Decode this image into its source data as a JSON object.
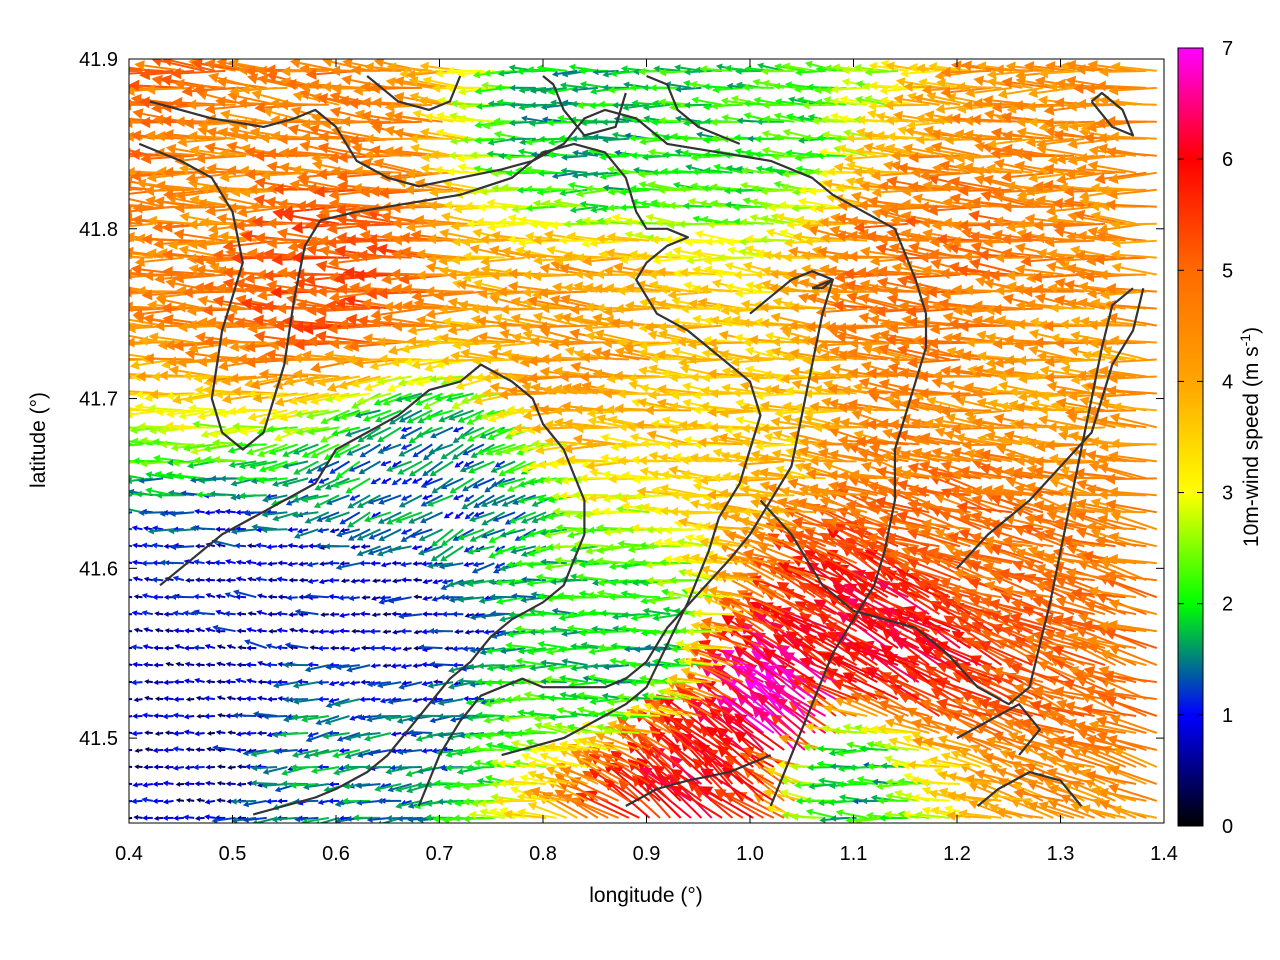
{
  "chart_data": {
    "type": "quiver",
    "title": "",
    "xlabel": "longitude (°)",
    "ylabel": "latitude (°)",
    "xlim": [
      0.4,
      1.4
    ],
    "ylim": [
      41.45,
      41.9
    ],
    "xticks": [
      "0.4",
      "0.5",
      "0.6",
      "0.7",
      "0.8",
      "0.9",
      "1.0",
      "1.1",
      "1.2",
      "1.3",
      "1.4"
    ],
    "yticks": [
      "41.5",
      "41.6",
      "41.7",
      "41.8",
      "41.9"
    ],
    "colorbar": {
      "label_main": "10m-wind speed (m s",
      "label_sup": "-1",
      "label_close": ")",
      "range": [
        0,
        7
      ],
      "ticks": [
        "0",
        "1",
        "2",
        "3",
        "4",
        "5",
        "6",
        "7"
      ],
      "stops": [
        {
          "value": 0,
          "color": "#000000"
        },
        {
          "value": 1,
          "color": "#0000ff"
        },
        {
          "value": 2,
          "color": "#00ff00"
        },
        {
          "value": 3,
          "color": "#ffff00"
        },
        {
          "value": 4,
          "color": "#ffa500"
        },
        {
          "value": 5,
          "color": "#ff6a00"
        },
        {
          "value": 6,
          "color": "#ff0000"
        },
        {
          "value": 7,
          "color": "#ff00ff"
        }
      ]
    },
    "wind_field": {
      "grid_spacing_deg": [
        0.01,
        0.01
      ],
      "background_direction": "westward (from east)",
      "regions": [
        {
          "lon": 0.62,
          "lat": 41.78,
          "speed": 5.2,
          "dir_deg": 178
        },
        {
          "lon": 0.45,
          "lat": 41.87,
          "speed": 4.8,
          "dir_deg": 175
        },
        {
          "lon": 0.5,
          "lat": 41.82,
          "speed": 4.5,
          "dir_deg": 178
        },
        {
          "lon": 0.85,
          "lat": 41.74,
          "speed": 4.2,
          "dir_deg": 175
        },
        {
          "lon": 1.0,
          "lat": 41.7,
          "speed": 3.6,
          "dir_deg": 175
        },
        {
          "lon": 1.2,
          "lat": 41.77,
          "speed": 4.8,
          "dir_deg": 175
        },
        {
          "lon": 1.3,
          "lat": 41.7,
          "speed": 4.2,
          "dir_deg": 176
        },
        {
          "lon": 1.25,
          "lat": 41.63,
          "speed": 4.8,
          "dir_deg": 165
        },
        {
          "lon": 1.05,
          "lat": 41.51,
          "speed": 6.8,
          "dir_deg": 140
        },
        {
          "lon": 1.15,
          "lat": 41.55,
          "speed": 6.0,
          "dir_deg": 150
        },
        {
          "lon": 0.98,
          "lat": 41.47,
          "speed": 6.0,
          "dir_deg": 140
        },
        {
          "lon": 0.6,
          "lat": 41.87,
          "speed": 4.6,
          "dir_deg": 175
        },
        {
          "lon": 1.38,
          "lat": 41.88,
          "speed": 4.4,
          "dir_deg": 180
        },
        {
          "lon": 0.85,
          "lat": 41.86,
          "speed": 1.8,
          "dir_deg": 180
        },
        {
          "lon": 1.0,
          "lat": 41.86,
          "speed": 2.0,
          "dir_deg": 175
        },
        {
          "lon": 0.5,
          "lat": 41.55,
          "speed": 0.8,
          "dir_deg": 170
        },
        {
          "lon": 0.45,
          "lat": 41.5,
          "speed": 0.7,
          "dir_deg": 180
        },
        {
          "lon": 0.65,
          "lat": 41.57,
          "speed": 0.8,
          "dir_deg": 185
        },
        {
          "lon": 0.7,
          "lat": 41.65,
          "speed": 1.4,
          "dir_deg": 210
        },
        {
          "lon": 0.6,
          "lat": 41.5,
          "speed": 1.4,
          "dir_deg": 190
        },
        {
          "lon": 0.9,
          "lat": 41.55,
          "speed": 1.8,
          "dir_deg": 180
        },
        {
          "lon": 1.1,
          "lat": 41.48,
          "speed": 1.6,
          "dir_deg": 180
        }
      ]
    },
    "contours": [
      [
        [
          0.42,
          41.875
        ],
        [
          0.48,
          41.865
        ],
        [
          0.53,
          41.86
        ],
        [
          0.56,
          41.865
        ],
        [
          0.58,
          41.87
        ],
        [
          0.6,
          41.86
        ],
        [
          0.62,
          41.84
        ],
        [
          0.65,
          41.83
        ],
        [
          0.68,
          41.825
        ],
        [
          0.72,
          41.83
        ],
        [
          0.76,
          41.835
        ],
        [
          0.79,
          41.84
        ],
        [
          0.82,
          41.85
        ],
        [
          0.84,
          41.865
        ],
        [
          0.86,
          41.87
        ],
        [
          0.89,
          41.865
        ],
        [
          0.92,
          41.85
        ],
        [
          0.97,
          41.845
        ],
        [
          1.02,
          41.84
        ],
        [
          1.06,
          41.83
        ],
        [
          1.08,
          41.82
        ],
        [
          1.11,
          41.81
        ],
        [
          1.14,
          41.8
        ],
        [
          1.15,
          41.785
        ],
        [
          1.16,
          41.77
        ],
        [
          1.17,
          41.75
        ],
        [
          1.17,
          41.73
        ],
        [
          1.16,
          41.71
        ],
        [
          1.15,
          41.69
        ],
        [
          1.14,
          41.67
        ],
        [
          1.14,
          41.64
        ],
        [
          1.13,
          41.61
        ],
        [
          1.12,
          41.59
        ],
        [
          1.1,
          41.57
        ],
        [
          1.08,
          41.55
        ],
        [
          1.06,
          41.52
        ],
        [
          1.04,
          41.49
        ],
        [
          1.02,
          41.46
        ]
      ],
      [
        [
          0.41,
          41.85
        ],
        [
          0.45,
          41.84
        ],
        [
          0.48,
          41.83
        ],
        [
          0.5,
          41.81
        ],
        [
          0.51,
          41.78
        ],
        [
          0.5,
          41.76
        ],
        [
          0.49,
          41.74
        ],
        [
          0.485,
          41.72
        ],
        [
          0.48,
          41.7
        ],
        [
          0.49,
          41.68
        ],
        [
          0.51,
          41.67
        ],
        [
          0.53,
          41.68
        ],
        [
          0.54,
          41.7
        ],
        [
          0.55,
          41.72
        ],
        [
          0.555,
          41.74
        ],
        [
          0.56,
          41.76
        ],
        [
          0.57,
          41.79
        ],
        [
          0.585,
          41.805
        ],
        [
          0.62,
          41.81
        ],
        [
          0.67,
          41.815
        ],
        [
          0.72,
          41.82
        ],
        [
          0.77,
          41.83
        ],
        [
          0.8,
          41.845
        ],
        [
          0.83,
          41.85
        ],
        [
          0.86,
          41.845
        ],
        [
          0.88,
          41.83
        ],
        [
          0.89,
          41.81
        ],
        [
          0.9,
          41.8
        ],
        [
          0.92,
          41.8
        ],
        [
          0.94,
          41.795
        ],
        [
          0.92,
          41.79
        ],
        [
          0.9,
          41.78
        ],
        [
          0.89,
          41.77
        ],
        [
          0.91,
          41.75
        ],
        [
          0.94,
          41.74
        ],
        [
          0.96,
          41.73
        ],
        [
          0.98,
          41.72
        ],
        [
          1.0,
          41.71
        ],
        [
          1.01,
          41.69
        ],
        [
          1.0,
          41.67
        ],
        [
          0.99,
          41.65
        ],
        [
          0.97,
          41.63
        ],
        [
          0.96,
          41.61
        ],
        [
          0.94,
          41.58
        ],
        [
          0.92,
          41.555
        ],
        [
          0.9,
          41.53
        ],
        [
          0.88,
          41.52
        ],
        [
          0.85,
          41.51
        ],
        [
          0.82,
          41.5
        ],
        [
          0.79,
          41.495
        ],
        [
          0.76,
          41.49
        ]
      ],
      [
        [
          0.43,
          41.59
        ],
        [
          0.45,
          41.6
        ],
        [
          0.49,
          41.62
        ],
        [
          0.52,
          41.63
        ],
        [
          0.55,
          41.64
        ],
        [
          0.58,
          41.65
        ],
        [
          0.6,
          41.67
        ],
        [
          0.63,
          41.68
        ],
        [
          0.66,
          41.69
        ],
        [
          0.69,
          41.705
        ],
        [
          0.72,
          41.71
        ],
        [
          0.74,
          41.72
        ],
        [
          0.77,
          41.71
        ],
        [
          0.79,
          41.7
        ],
        [
          0.8,
          41.685
        ],
        [
          0.82,
          41.67
        ],
        [
          0.84,
          41.64
        ],
        [
          0.84,
          41.62
        ],
        [
          0.83,
          41.605
        ],
        [
          0.82,
          41.59
        ],
        [
          0.8,
          41.58
        ],
        [
          0.77,
          41.57
        ],
        [
          0.75,
          41.56
        ],
        [
          0.73,
          41.545
        ],
        [
          0.71,
          41.535
        ],
        [
          0.69,
          41.52
        ],
        [
          0.67,
          41.505
        ],
        [
          0.65,
          41.49
        ],
        [
          0.63,
          41.48
        ],
        [
          0.6,
          41.47
        ],
        [
          0.58,
          41.465
        ],
        [
          0.55,
          41.46
        ],
        [
          0.52,
          41.455
        ]
      ],
      [
        [
          0.68,
          41.46
        ],
        [
          0.7,
          41.49
        ],
        [
          0.72,
          41.51
        ],
        [
          0.74,
          41.525
        ],
        [
          0.76,
          41.53
        ],
        [
          0.78,
          41.535
        ],
        [
          0.8,
          41.53
        ],
        [
          0.83,
          41.53
        ],
        [
          0.86,
          41.53
        ],
        [
          0.88,
          41.535
        ],
        [
          0.9,
          41.545
        ],
        [
          0.92,
          41.565
        ],
        [
          0.95,
          41.585
        ],
        [
          0.98,
          41.605
        ],
        [
          1.0,
          41.62
        ],
        [
          1.02,
          41.64
        ],
        [
          1.04,
          41.66
        ],
        [
          1.05,
          41.69
        ],
        [
          1.06,
          41.72
        ],
        [
          1.07,
          41.75
        ],
        [
          1.08,
          41.77
        ],
        [
          1.06,
          41.775
        ],
        [
          1.04,
          41.77
        ],
        [
          1.02,
          41.76
        ],
        [
          1.0,
          41.75
        ]
      ],
      [
        [
          0.88,
          41.46
        ],
        [
          0.91,
          41.47
        ],
        [
          0.94,
          41.475
        ],
        [
          0.98,
          41.48
        ],
        [
          1.02,
          41.49
        ]
      ],
      [
        [
          1.2,
          41.5
        ],
        [
          1.23,
          41.51
        ],
        [
          1.26,
          41.52
        ],
        [
          1.28,
          41.505
        ],
        [
          1.26,
          41.49
        ]
      ],
      [
        [
          1.06,
          41.765
        ],
        [
          1.08,
          41.77
        ],
        [
          1.07,
          41.765
        ],
        [
          1.06,
          41.765
        ]
      ],
      [
        [
          1.22,
          41.46
        ],
        [
          1.24,
          41.47
        ],
        [
          1.27,
          41.48
        ],
        [
          1.3,
          41.475
        ],
        [
          1.32,
          41.46
        ]
      ],
      [
        [
          1.33,
          41.875
        ],
        [
          1.35,
          41.86
        ],
        [
          1.37,
          41.855
        ],
        [
          1.36,
          41.87
        ],
        [
          1.34,
          41.88
        ],
        [
          1.33,
          41.875
        ]
      ],
      [
        [
          0.9,
          41.89
        ],
        [
          0.92,
          41.885
        ],
        [
          0.93,
          41.87
        ],
        [
          0.95,
          41.86
        ],
        [
          0.97,
          41.855
        ],
        [
          0.99,
          41.85
        ]
      ],
      [
        [
          1.2,
          41.6
        ],
        [
          1.23,
          41.62
        ],
        [
          1.27,
          41.64
        ],
        [
          1.3,
          41.66
        ],
        [
          1.33,
          41.68
        ],
        [
          1.35,
          41.72
        ],
        [
          1.37,
          41.74
        ],
        [
          1.38,
          41.765
        ]
      ],
      [
        [
          1.37,
          41.765
        ],
        [
          1.35,
          41.755
        ],
        [
          1.34,
          41.73
        ],
        [
          1.33,
          41.7
        ],
        [
          1.32,
          41.67
        ],
        [
          1.31,
          41.64
        ],
        [
          1.3,
          41.61
        ],
        [
          1.29,
          41.58
        ],
        [
          1.28,
          41.555
        ],
        [
          1.27,
          41.53
        ],
        [
          1.25,
          41.52
        ],
        [
          1.22,
          41.53
        ],
        [
          1.19,
          41.55
        ],
        [
          1.16,
          41.565
        ],
        [
          1.13,
          41.57
        ],
        [
          1.1,
          41.575
        ],
        [
          1.07,
          41.59
        ],
        [
          1.04,
          41.62
        ],
        [
          1.01,
          41.64
        ]
      ],
      [
        [
          0.88,
          41.88
        ],
        [
          0.87,
          41.86
        ],
        [
          0.84,
          41.855
        ],
        [
          0.82,
          41.87
        ],
        [
          0.81,
          41.885
        ],
        [
          0.8,
          41.89
        ]
      ],
      [
        [
          0.63,
          41.89
        ],
        [
          0.66,
          41.875
        ],
        [
          0.69,
          41.87
        ],
        [
          0.71,
          41.875
        ],
        [
          0.72,
          41.89
        ]
      ]
    ]
  }
}
